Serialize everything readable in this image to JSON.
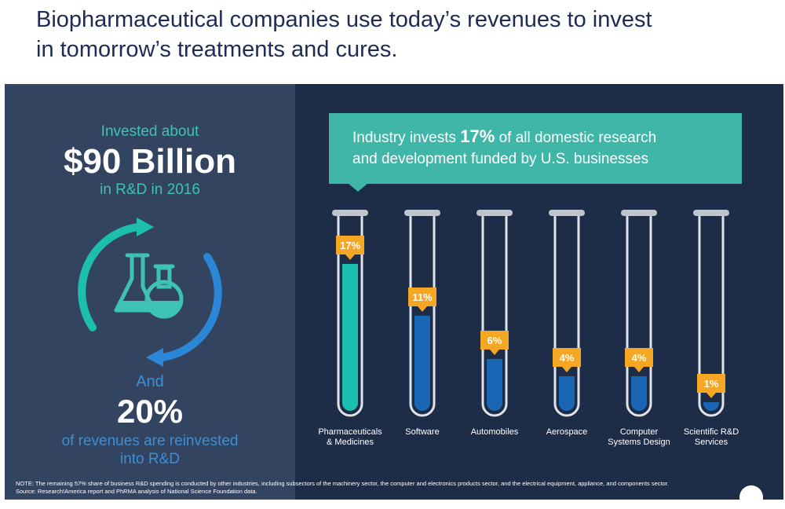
{
  "header": {
    "title_line1": "Biopharmaceutical companies use today’s revenues to invest",
    "title_line2": "in tomorrow’s treatments and cures."
  },
  "left_panel": {
    "invested_label": "Invested about",
    "amount": "$90 Billion",
    "amount_suffix": "in R&D in 2016",
    "and_label": "And",
    "reinvest_pct": "20%",
    "reinvest_line1": "of revenues are reinvested",
    "reinvest_line2": "into R&D",
    "icon": "flasks-cycle-icon"
  },
  "callout": {
    "line1_pre": "Industry invests ",
    "line1_bold": "17%",
    "line1_post": " of all domestic research",
    "line2": "and development funded by U.S. businesses"
  },
  "chart_data": {
    "type": "bar",
    "style": "test-tubes",
    "categories": [
      [
        "Pharmaceuticals",
        "& Medicines"
      ],
      [
        "Software"
      ],
      [
        "Automobiles"
      ],
      [
        "Aerospace"
      ],
      [
        "Computer",
        "Systems Design"
      ],
      [
        "Scientific R&D",
        "Services"
      ]
    ],
    "values": [
      17,
      11,
      6,
      4,
      4,
      1
    ],
    "value_labels": [
      "17%",
      "11%",
      "6%",
      "4%",
      "4%",
      "1%"
    ],
    "unit": "%",
    "ylim": [
      0,
      20
    ],
    "colors": {
      "highlight": "#1cbfad",
      "bar": "#1a66b5",
      "tag": "#f5a623",
      "tube_outline": "#e0e4ea"
    }
  },
  "footer": {
    "note": "NOTE: The remaining 57% share of business R&D spending is conducted by other industries, including subsectors of the machinery sector, the computer and electronics products sector, and the electrical equipment, appliance, and components sector.",
    "source": "Source: Research!America report and PhRMA analysis of National Science Foundation data."
  },
  "colors": {
    "title": "#1f2a56",
    "teal": "#3ec2b6",
    "blue": "#3a8fd9",
    "left_bg": "#334460",
    "right_bg": "#1e2d47"
  }
}
